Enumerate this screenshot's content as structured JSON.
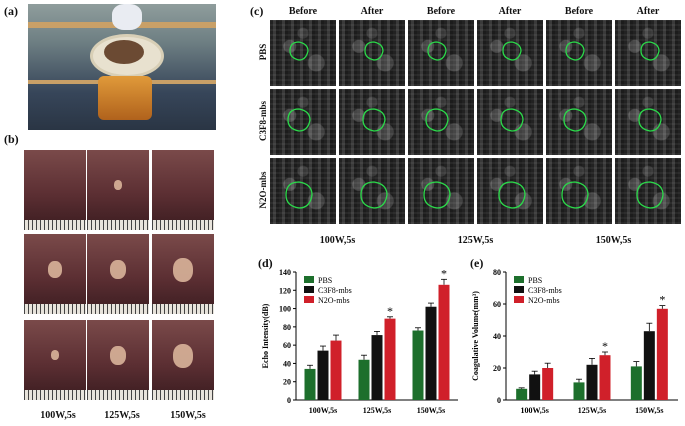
{
  "panels": {
    "a": "(a)",
    "b": "(b)",
    "c": "(c)",
    "d": "(d)",
    "e": "(e)"
  },
  "b": {
    "labels": [
      "100W,5s",
      "125W,5s",
      "150W,5s"
    ]
  },
  "c": {
    "col_headers": [
      "Before",
      "After",
      "Before",
      "After",
      "Before",
      "After"
    ],
    "row_headers": [
      "PBS",
      "C3F8-mbs",
      "N2O-mbs"
    ],
    "groups": [
      "100W,5s",
      "125W,5s",
      "150W,5s"
    ]
  },
  "chart_data": [
    {
      "panel": "d",
      "type": "bar",
      "categories": [
        "100W,5s",
        "125W,5s",
        "150W,5s"
      ],
      "ylabel": "Echo Intensity(dB)",
      "ylim": [
        0,
        140
      ],
      "yticks": [
        0,
        20,
        40,
        60,
        80,
        100,
        120,
        140
      ],
      "series": [
        {
          "name": "PBS",
          "color": "#1d6f2c",
          "values": [
            34,
            44,
            76
          ],
          "errors": [
            4,
            5,
            3
          ]
        },
        {
          "name": "C3F8-mbs",
          "color": "#111111",
          "values": [
            54,
            71,
            102
          ],
          "errors": [
            5,
            4,
            4
          ]
        },
        {
          "name": "N2O-mbs",
          "color": "#d0202a",
          "values": [
            65,
            89,
            126
          ],
          "errors": [
            6,
            2,
            6
          ]
        }
      ],
      "significance": [
        "",
        "*",
        "*"
      ],
      "legend": "top-left"
    },
    {
      "panel": "e",
      "type": "bar",
      "categories": [
        "100W,5s",
        "125W,5s",
        "150W,5s"
      ],
      "ylabel": "Coagulative Volume(mm³)",
      "ylim": [
        0,
        80
      ],
      "yticks": [
        0,
        20,
        40,
        60,
        80
      ],
      "series": [
        {
          "name": "PBS",
          "color": "#1d6f2c",
          "values": [
            7,
            11,
            21
          ],
          "errors": [
            0.6,
            2,
            3
          ]
        },
        {
          "name": "C3F8-mbs",
          "color": "#111111",
          "values": [
            16,
            22,
            43
          ],
          "errors": [
            2,
            4,
            5
          ]
        },
        {
          "name": "N2O-mbs",
          "color": "#d0202a",
          "values": [
            20,
            28,
            57
          ],
          "errors": [
            3,
            2,
            2
          ]
        }
      ],
      "significance": [
        "",
        "*",
        "*"
      ],
      "legend": "top-left"
    }
  ]
}
